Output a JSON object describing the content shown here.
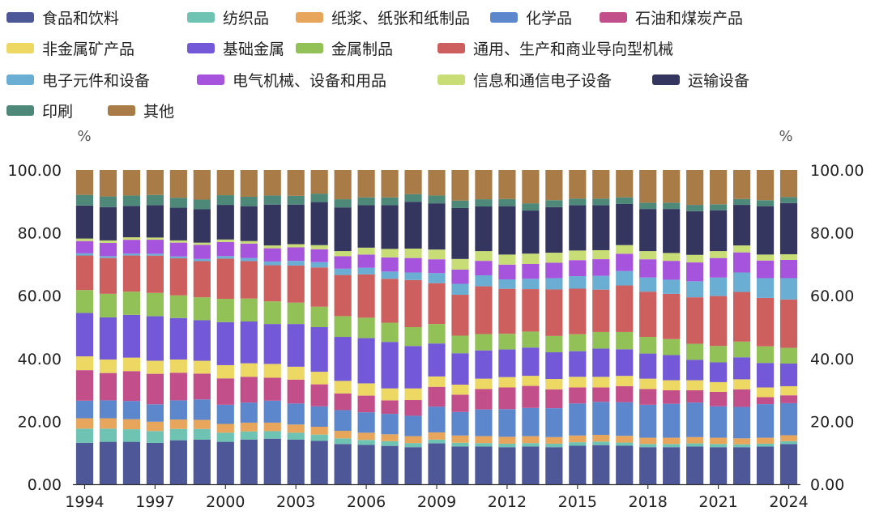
{
  "chart_data": {
    "type": "bar",
    "stacked": true,
    "ylabel_left": "%",
    "ylabel_right": "%",
    "ylim": [
      0,
      100
    ],
    "yticks": [
      "0.00",
      "20.00",
      "40.00",
      "60.00",
      "80.00",
      "100.00"
    ],
    "x_tick_labels": [
      "1994",
      "1997",
      "2000",
      "2003",
      "2006",
      "2009",
      "2012",
      "2015",
      "2018",
      "2021",
      "2024"
    ],
    "categories": [
      "1994",
      "1995",
      "1996",
      "1997",
      "1998",
      "1999",
      "2000",
      "2001",
      "2002",
      "2003",
      "2004",
      "2005",
      "2006",
      "2007",
      "2008",
      "2009",
      "2010",
      "2011",
      "2012",
      "2013",
      "2014",
      "2015",
      "2016",
      "2017",
      "2018",
      "2019",
      "2020",
      "2021",
      "2022",
      "2023",
      "2024"
    ],
    "legend_placement": "top",
    "series": [
      {
        "name": "食品和饮料",
        "color": "#4e5797",
        "values": [
          13.2,
          13.5,
          13.5,
          13.3,
          14.0,
          14.2,
          13.5,
          14.2,
          14.5,
          14.2,
          13.8,
          12.8,
          12.5,
          12.2,
          11.8,
          13.0,
          12.0,
          12.0,
          11.8,
          12.0,
          11.8,
          12.0,
          12.2,
          12.0,
          11.8,
          11.8,
          12.0,
          11.8,
          11.8,
          12.0,
          12.8
        ]
      },
      {
        "name": "纺织品",
        "color": "#6ec3b3",
        "values": [
          4.5,
          4.2,
          4.0,
          3.8,
          3.6,
          3.4,
          2.9,
          2.6,
          2.4,
          2.2,
          2.0,
          1.8,
          1.6,
          1.5,
          1.3,
          1.2,
          1.2,
          1.1,
          1.1,
          1.1,
          1.1,
          1.1,
          1.1,
          1.0,
          1.0,
          1.0,
          1.0,
          1.0,
          0.9,
          0.9,
          0.9
        ]
      },
      {
        "name": "纸浆、纸张和纸制品",
        "color": "#e8a65c",
        "values": [
          3.3,
          3.3,
          3.2,
          3.0,
          3.0,
          2.9,
          2.8,
          2.8,
          2.7,
          2.6,
          2.5,
          2.4,
          2.3,
          2.2,
          2.2,
          2.3,
          2.3,
          2.2,
          2.2,
          2.2,
          2.1,
          2.1,
          2.1,
          2.1,
          2.0,
          2.0,
          2.0,
          2.0,
          1.9,
          1.9,
          1.9
        ]
      },
      {
        "name": "化学品",
        "color": "#5d87cd",
        "values": [
          5.6,
          5.7,
          5.8,
          5.6,
          6.1,
          6.5,
          6.1,
          6.4,
          7.0,
          6.7,
          6.5,
          6.6,
          6.5,
          6.5,
          6.5,
          8.2,
          7.5,
          8.5,
          8.8,
          9.0,
          9.2,
          10.0,
          10.3,
          10.5,
          10.5,
          10.8,
          11.0,
          10.0,
          10.0,
          10.7,
          10.2
        ]
      },
      {
        "name": "石油和煤炭产品",
        "color": "#c24e8a",
        "values": [
          9.7,
          8.7,
          9.5,
          9.8,
          8.8,
          8.2,
          8.4,
          8.2,
          7.3,
          7.6,
          7.0,
          5.3,
          5.3,
          4.3,
          5.0,
          6.3,
          5.5,
          6.5,
          6.9,
          7.0,
          6.0,
          5.0,
          4.5,
          5.0,
          5.0,
          4.3,
          3.9,
          4.6,
          5.6,
          2.2,
          2.5
        ]
      },
      {
        "name": "非金属矿产品",
        "color": "#ecd863",
        "values": [
          4.4,
          4.3,
          4.3,
          4.2,
          4.2,
          4.1,
          4.2,
          4.3,
          4.4,
          4.1,
          4.0,
          4.0,
          3.9,
          3.8,
          3.7,
          3.3,
          3.2,
          3.3,
          3.3,
          3.2,
          3.3,
          3.3,
          3.3,
          3.2,
          3.3,
          3.2,
          3.2,
          3.1,
          3.2,
          3.1,
          2.9
        ]
      },
      {
        "name": "基础金属",
        "color": "#7358d8",
        "values": [
          13.8,
          13.4,
          13.6,
          14.3,
          13.2,
          12.9,
          13.7,
          13.3,
          12.7,
          13.6,
          14.2,
          14.0,
          14.4,
          14.8,
          13.5,
          10.5,
          10.0,
          9.0,
          8.8,
          9.0,
          8.5,
          8.0,
          8.8,
          8.3,
          8.0,
          8.0,
          6.5,
          6.3,
          7.0,
          7.8,
          7.2
        ]
      },
      {
        "name": "金属制品",
        "color": "#92c257",
        "values": [
          7.3,
          7.5,
          7.4,
          7.5,
          7.2,
          7.3,
          7.4,
          7.3,
          7.2,
          6.8,
          6.5,
          6.6,
          6.5,
          6.1,
          6.0,
          6.2,
          5.6,
          5.2,
          5.0,
          5.1,
          5.2,
          5.3,
          5.2,
          5.4,
          5.3,
          5.1,
          5.1,
          5.2,
          5.0,
          5.3,
          5.0
        ]
      },
      {
        "name": "通用、生产和商业导向型机械",
        "color": "#cd605f",
        "values": [
          11.0,
          11.4,
          11.5,
          12.0,
          11.8,
          11.5,
          12.8,
          11.9,
          11.5,
          11.8,
          12.5,
          13.1,
          13.8,
          14.0,
          15.0,
          13.0,
          13.0,
          15.2,
          14.3,
          13.5,
          14.8,
          14.2,
          13.2,
          14.5,
          14.4,
          14.4,
          14.8,
          15.9,
          15.8,
          15.4,
          15.4
        ]
      },
      {
        "name": "电子元件和设备",
        "color": "#6aaed4",
        "values": [
          0.7,
          0.6,
          0.6,
          0.6,
          0.6,
          0.7,
          0.8,
          1.0,
          1.2,
          1.5,
          1.7,
          2.0,
          2.1,
          2.3,
          2.4,
          3.2,
          3.5,
          3.5,
          3.0,
          3.3,
          3.6,
          3.9,
          4.3,
          4.5,
          4.5,
          4.5,
          5.1,
          5.9,
          6.2,
          6.3,
          6.8
        ]
      },
      {
        "name": "电气机械、设备和用品",
        "color": "#a653dd",
        "values": [
          3.9,
          4.2,
          4.4,
          4.5,
          4.4,
          4.5,
          4.5,
          4.6,
          4.2,
          4.3,
          4.1,
          4.0,
          4.2,
          4.5,
          4.6,
          4.4,
          4.5,
          4.6,
          4.7,
          4.7,
          4.9,
          5.0,
          5.2,
          5.4,
          5.8,
          6.0,
          6.0,
          6.2,
          6.4,
          5.6,
          5.8
        ]
      },
      {
        "name": "信息和通信电子设备",
        "color": "#c9dd77",
        "values": [
          0.8,
          0.8,
          0.8,
          0.7,
          0.7,
          0.7,
          0.8,
          0.8,
          0.9,
          1.0,
          1.3,
          1.6,
          2.2,
          2.7,
          3.0,
          3.1,
          3.4,
          3.1,
          3.2,
          3.3,
          3.2,
          3.0,
          2.8,
          2.7,
          2.6,
          2.5,
          2.4,
          2.2,
          2.2,
          1.9,
          1.8
        ]
      },
      {
        "name": "运输设备",
        "color": "#343660",
        "values": [
          10.5,
          10.6,
          10.0,
          10.4,
          10.4,
          10.6,
          11.0,
          11.1,
          13.0,
          12.6,
          13.7,
          13.9,
          13.5,
          13.9,
          14.9,
          14.7,
          16.2,
          14.2,
          15.4,
          13.7,
          14.5,
          14.1,
          14.0,
          12.8,
          13.4,
          14.0,
          13.9,
          13.0,
          12.9,
          15.4,
          16.3
        ]
      },
      {
        "name": "印刷",
        "color": "#4e8878",
        "values": [
          3.4,
          3.4,
          3.3,
          3.3,
          3.2,
          3.1,
          3.1,
          3.0,
          2.9,
          2.8,
          2.7,
          2.6,
          2.5,
          2.5,
          2.4,
          2.5,
          2.4,
          2.3,
          2.3,
          2.3,
          2.2,
          2.1,
          2.1,
          2.1,
          2.0,
          2.0,
          2.0,
          1.9,
          1.9,
          1.9,
          1.9
        ]
      },
      {
        "name": "其他",
        "color": "#a97c47",
        "values": [
          7.9,
          8.4,
          8.1,
          8.0,
          8.8,
          9.4,
          8.0,
          8.5,
          8.1,
          8.2,
          7.5,
          9.3,
          8.7,
          8.7,
          7.7,
          8.1,
          9.7,
          9.3,
          9.2,
          10.6,
          9.6,
          8.9,
          8.9,
          8.5,
          10.4,
          10.4,
          11.1,
          10.9,
          9.2,
          9.6,
          8.6
        ]
      }
    ]
  }
}
